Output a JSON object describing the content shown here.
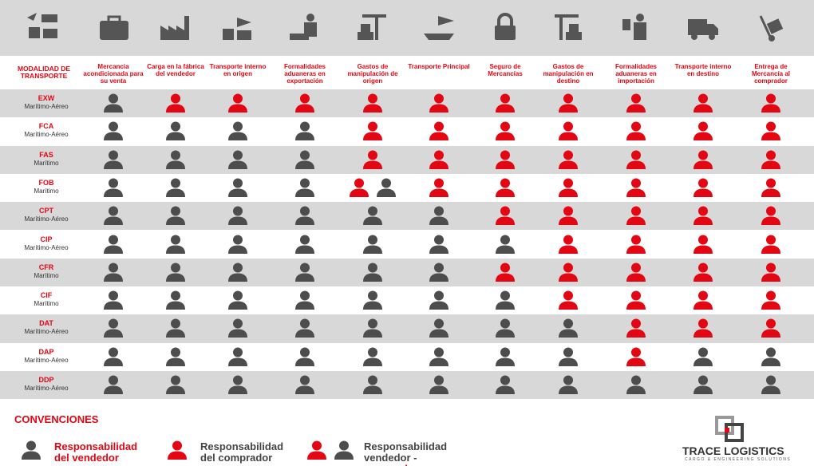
{
  "header": {
    "first_column": "MODALIDAD DE TRANSPORTE",
    "columns": [
      "Mercancia acondicionada para su venta",
      "Carga en la fábrica del vendedor",
      "Transporte interno en origen",
      "Formalidades aduaneras en exportación",
      "Gastos de manipulación de origen",
      "Transporte Principal",
      "Seguro de Mercancías",
      "Gastos de manipulación en destino",
      "Formalidades aduaneras en importación",
      "Transporte interno en destino",
      "Entrega de Mercancía al comprador"
    ]
  },
  "table": {
    "rows": [
      {
        "term": "EXW",
        "mode": "Marítimo-Aéreo",
        "cells": [
          "V",
          "C",
          "C",
          "C",
          "C",
          "C",
          "C",
          "C",
          "C",
          "C",
          "C"
        ]
      },
      {
        "term": "FCA",
        "mode": "Marítimo-Aéreo",
        "cells": [
          "V",
          "V",
          "V",
          "V",
          "C",
          "C",
          "C",
          "C",
          "C",
          "C",
          "C"
        ]
      },
      {
        "term": "FAS",
        "mode": "Marítimo",
        "cells": [
          "V",
          "V",
          "V",
          "V",
          "C",
          "C",
          "C",
          "C",
          "C",
          "C",
          "C"
        ]
      },
      {
        "term": "FOB",
        "mode": "Marítimo",
        "cells": [
          "V",
          "V",
          "V",
          "V",
          "VC",
          "C",
          "C",
          "C",
          "C",
          "C",
          "C"
        ]
      },
      {
        "term": "CPT",
        "mode": "Marítimo-Aéreo",
        "cells": [
          "V",
          "V",
          "V",
          "V",
          "V",
          "V",
          "C",
          "C",
          "C",
          "C",
          "C"
        ]
      },
      {
        "term": "CIP",
        "mode": "Marítimo-Aéreo",
        "cells": [
          "V",
          "V",
          "V",
          "V",
          "V",
          "V",
          "V",
          "C",
          "C",
          "C",
          "C"
        ]
      },
      {
        "term": "CFR",
        "mode": "Marítimo",
        "cells": [
          "V",
          "V",
          "V",
          "V",
          "V",
          "V",
          "C",
          "C",
          "C",
          "C",
          "C"
        ]
      },
      {
        "term": "CIF",
        "mode": "Marítimo",
        "cells": [
          "V",
          "V",
          "V",
          "V",
          "V",
          "V",
          "V",
          "C",
          "C",
          "C",
          "C"
        ]
      },
      {
        "term": "DAT",
        "mode": "Marítimo-Aéreo",
        "cells": [
          "V",
          "V",
          "V",
          "V",
          "V",
          "V",
          "V",
          "V",
          "C",
          "C",
          "C"
        ]
      },
      {
        "term": "DAP",
        "mode": "Marítimo-Aéreo",
        "cells": [
          "V",
          "V",
          "V",
          "V",
          "V",
          "V",
          "V",
          "V",
          "C",
          "V",
          "V"
        ]
      },
      {
        "term": "DDP",
        "mode": "Marítimo-Aéreo",
        "cells": [
          "V",
          "V",
          "V",
          "V",
          "V",
          "V",
          "V",
          "V",
          "V",
          "V",
          "V"
        ]
      }
    ]
  },
  "legend": {
    "title": "CONVENCIONES",
    "items": [
      {
        "kind": "V",
        "label": "Responsabilidad del vendedor"
      },
      {
        "kind": "C",
        "label": "Responsabilidad del comprador"
      },
      {
        "kind": "VC",
        "label": "Responsabilidad vendedor - ",
        "label_red": "comprador"
      }
    ]
  },
  "logo": {
    "name": "TRACE LOGISTICS",
    "tagline": "CARGO & ENGINEERING SOLUTIONS"
  }
}
